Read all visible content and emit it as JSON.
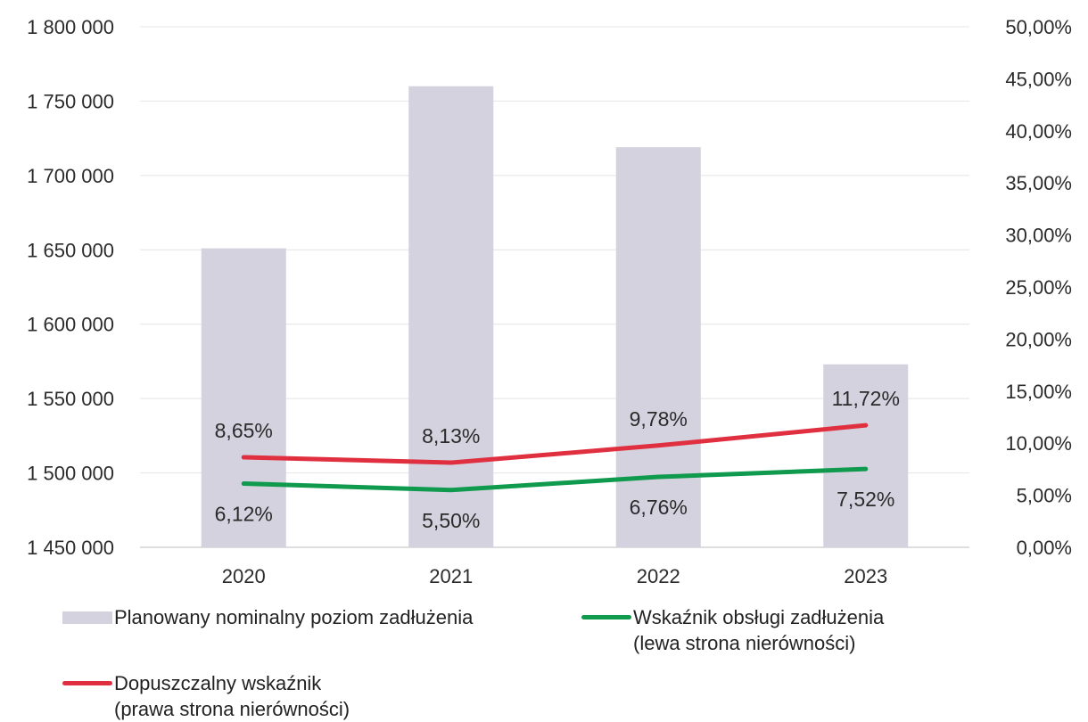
{
  "chart_data": {
    "type": "bar",
    "categories": [
      "2020",
      "2021",
      "2022",
      "2023"
    ],
    "y_left": {
      "min": 1450000,
      "max": 1800000,
      "step": 50000,
      "tick_labels": [
        "1 450 000",
        "1 500 000",
        "1 550 000",
        "1 600 000",
        "1 650 000",
        "1 700 000",
        "1 750 000",
        "1 800 000"
      ]
    },
    "y_right": {
      "min": 0,
      "max": 50,
      "step": 5,
      "tick_labels": [
        "0,00%",
        "5,00%",
        "10,00%",
        "15,00%",
        "20,00%",
        "25,00%",
        "30,00%",
        "35,00%",
        "40,00%",
        "45,00%",
        "50,00%"
      ]
    },
    "grid": true,
    "legend_position": "bottom",
    "series": [
      {
        "name": "Planowany nominalny poziom zadłużenia",
        "type": "bar",
        "axis": "left",
        "color": "#d3d2de",
        "values": [
          1651000,
          1760000,
          1719000,
          1573000
        ]
      },
      {
        "name": "Wskaźnik obsługi zadłużenia (lewa strona nierówności)",
        "legend_lines": [
          "Wskaźnik obsługi zadłużenia",
          "(lewa strona nierówności)"
        ],
        "type": "line",
        "axis": "right",
        "color": "#0f9a4e",
        "values": [
          6.12,
          5.5,
          6.76,
          7.52
        ],
        "labels": [
          "6,12%",
          "5,50%",
          "6,76%",
          "7,52%"
        ]
      },
      {
        "name": "Dopuszczalny wskaźnik (prawa strona nierówności)",
        "legend_lines": [
          "Dopuszczalny wskaźnik",
          "(prawa strona nierówności)"
        ],
        "type": "line",
        "axis": "right",
        "color": "#e03040",
        "values": [
          8.65,
          8.13,
          9.78,
          11.72
        ],
        "labels": [
          "8,65%",
          "8,13%",
          "9,78%",
          "11,72%"
        ]
      }
    ]
  }
}
